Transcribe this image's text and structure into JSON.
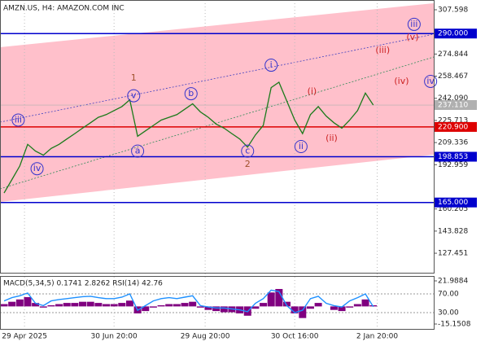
{
  "chart_data": {
    "type": "line",
    "title": "AMZN.US, H4:  AMAZON.COM INC",
    "x": [
      0,
      1,
      2,
      3,
      4,
      5,
      6,
      7,
      8,
      9,
      10,
      11,
      12,
      13,
      14,
      15,
      16,
      17,
      18,
      19,
      20,
      21,
      22,
      23,
      24,
      25,
      26,
      27,
      28,
      29,
      30,
      31,
      32,
      33,
      34,
      35,
      36,
      37,
      38,
      39,
      40,
      41,
      42,
      43,
      44,
      45,
      46,
      47
    ],
    "series": [
      {
        "color": "#1a7a1a",
        "values": [
          172,
          182,
          192,
          208,
          203,
          200,
          205,
          208,
          212,
          216,
          220,
          224,
          228,
          230,
          233,
          236,
          241,
          214,
          218,
          222,
          226,
          228,
          230,
          234,
          238,
          232,
          228,
          223,
          220,
          216,
          212,
          206,
          215,
          222,
          250,
          254,
          240,
          226,
          216,
          230,
          236,
          229,
          224,
          220,
          226,
          233,
          246,
          237.11
        ]
      }
    ],
    "xlim": [
      -0.52,
      54.7
    ],
    "xticks": [
      {
        "value": 2.6,
        "label": "29 Apr 2025"
      },
      {
        "value": 14,
        "label": "30 Jun 20:00"
      },
      {
        "value": 25.6,
        "label": "29 Aug 20:00"
      },
      {
        "value": 37,
        "label": "30 Oct 16:00"
      },
      {
        "value": 47.5,
        "label": "2 Jan 20:00"
      }
    ],
    "ylim": [
      113.02,
      314.83
    ],
    "yticks": [
      {
        "value": 307.598,
        "label": "307.598"
      },
      {
        "value": 274.844,
        "label": "274.844"
      },
      {
        "value": 258.467,
        "label": "258.467"
      },
      {
        "value": 242.09,
        "label": "242.090"
      },
      {
        "value": 225.713,
        "label": "225.713"
      },
      {
        "value": 209.336,
        "label": "209.336"
      },
      {
        "value": 192.959,
        "label": "192.959"
      },
      {
        "value": 160.205,
        "label": "160.205"
      },
      {
        "value": 143.828,
        "label": "143.828"
      },
      {
        "value": 127.451,
        "label": "127.451"
      }
    ],
    "levels": [
      {
        "value": 290,
        "label": "290.000",
        "color": "#0000cd"
      },
      {
        "value": 220.9,
        "label": "220.900",
        "color": "#dd0000"
      },
      {
        "value": 198.853,
        "label": "198.853",
        "color": "#0000cd"
      },
      {
        "value": 165,
        "label": "165.000",
        "color": "#0000cd"
      }
    ],
    "current": {
      "value": 237.11,
      "label": "237.110",
      "color": "#b0b0b0"
    },
    "annotations": [
      {
        "text": "iii",
        "x": 1.8,
        "y": 226,
        "style": "circle"
      },
      {
        "text": "iv",
        "x": 4.2,
        "y": 190,
        "style": "circle"
      },
      {
        "text": "1",
        "x": 16.5,
        "y": 257,
        "style": "plain"
      },
      {
        "text": "v",
        "x": 16.5,
        "y": 244,
        "style": "circle"
      },
      {
        "text": "a",
        "x": 17,
        "y": 203,
        "style": "circle"
      },
      {
        "text": "b",
        "x": 23.8,
        "y": 245.5,
        "style": "circle"
      },
      {
        "text": "c",
        "x": 31,
        "y": 203,
        "style": "circle"
      },
      {
        "text": "2",
        "x": 31,
        "y": 193,
        "style": "plain"
      },
      {
        "text": "i",
        "x": 34,
        "y": 266.6,
        "style": "circle"
      },
      {
        "text": "(i)",
        "x": 39.2,
        "y": 247,
        "style": "red"
      },
      {
        "text": "ii",
        "x": 37.8,
        "y": 206.4,
        "style": "circle"
      },
      {
        "text": "(ii)",
        "x": 41.7,
        "y": 212.4,
        "style": "red"
      },
      {
        "text": "(iii)",
        "x": 48.2,
        "y": 277.5,
        "style": "red"
      },
      {
        "text": "(iv)",
        "x": 50.6,
        "y": 254.6,
        "style": "red"
      },
      {
        "text": "(v)",
        "x": 52,
        "y": 287,
        "style": "red"
      },
      {
        "text": "iii",
        "x": 52.2,
        "y": 296.8,
        "style": "circle"
      },
      {
        "text": "iv",
        "x": 54.3,
        "y": 254.6,
        "style": "circle"
      }
    ],
    "indicator": {
      "label": "MACD(5,34,5) 0.1741 2.8262 RSI(14) 42.76",
      "macd": {
        "color": "#800080",
        "ylim": [
          -15.1508,
          21.9884
        ],
        "yticks": [
          {
            "value": 21.9884,
            "label": "21.9884"
          },
          {
            "value": -15.1508,
            "label": "-15.1508"
          }
        ],
        "values": [
          2,
          4,
          6,
          8,
          3,
          -1,
          1,
          2,
          3,
          3,
          4,
          4,
          3,
          2,
          2,
          3,
          5,
          -6,
          -4,
          -1,
          1,
          2,
          2,
          3,
          4,
          -1,
          -3,
          -4,
          -5,
          -5,
          -6,
          -8,
          -2,
          3,
          12,
          15,
          4,
          -6,
          -10,
          -2,
          3,
          0,
          -3,
          -4,
          -1,
          2,
          6,
          1
        ]
      },
      "rsi": {
        "color": "#1e90ff",
        "ylim": [
          30,
          70
        ],
        "yticks": [
          {
            "value": 70,
            "label": "70.00"
          },
          {
            "value": 30,
            "label": "30.00"
          }
        ],
        "values": [
          55,
          62,
          66,
          72,
          50,
          45,
          55,
          58,
          60,
          62,
          64,
          65,
          62,
          60,
          60,
          63,
          70,
          35,
          45,
          55,
          60,
          62,
          60,
          63,
          66,
          45,
          42,
          40,
          40,
          38,
          36,
          32,
          50,
          60,
          78,
          75,
          45,
          30,
          35,
          60,
          65,
          50,
          45,
          42,
          55,
          62,
          70,
          42.76
        ]
      }
    }
  }
}
